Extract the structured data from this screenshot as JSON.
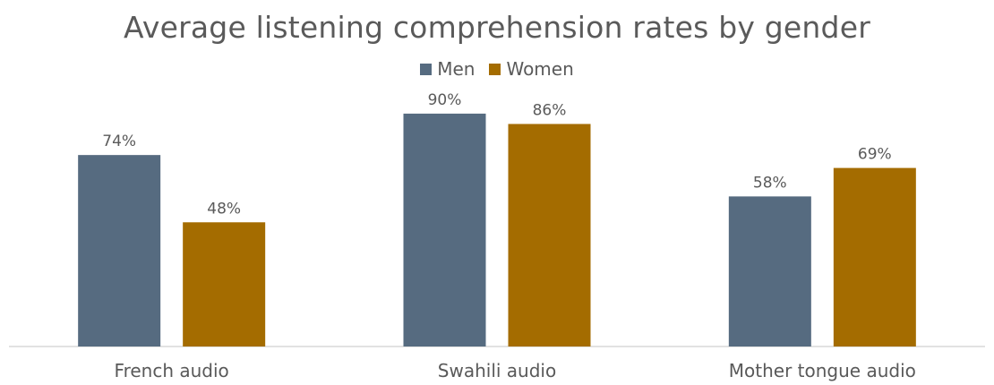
{
  "chart_data": {
    "type": "bar",
    "title": "Average listening comprehension rates by gender",
    "categories": [
      "French audio",
      "Swahili audio",
      "Mother tongue audio"
    ],
    "series": [
      {
        "name": "Men",
        "values": [
          74,
          90,
          58
        ],
        "labels": [
          "74%",
          "90%",
          "58%"
        ],
        "color": "#566b80"
      },
      {
        "name": "Women",
        "values": [
          48,
          86,
          69
        ],
        "labels": [
          "48%",
          "86%",
          "69%"
        ],
        "color": "#a46c00"
      }
    ],
    "ylim": [
      0,
      100
    ],
    "grid": false,
    "legend_position": "top-center",
    "xlabel": "",
    "ylabel": ""
  }
}
